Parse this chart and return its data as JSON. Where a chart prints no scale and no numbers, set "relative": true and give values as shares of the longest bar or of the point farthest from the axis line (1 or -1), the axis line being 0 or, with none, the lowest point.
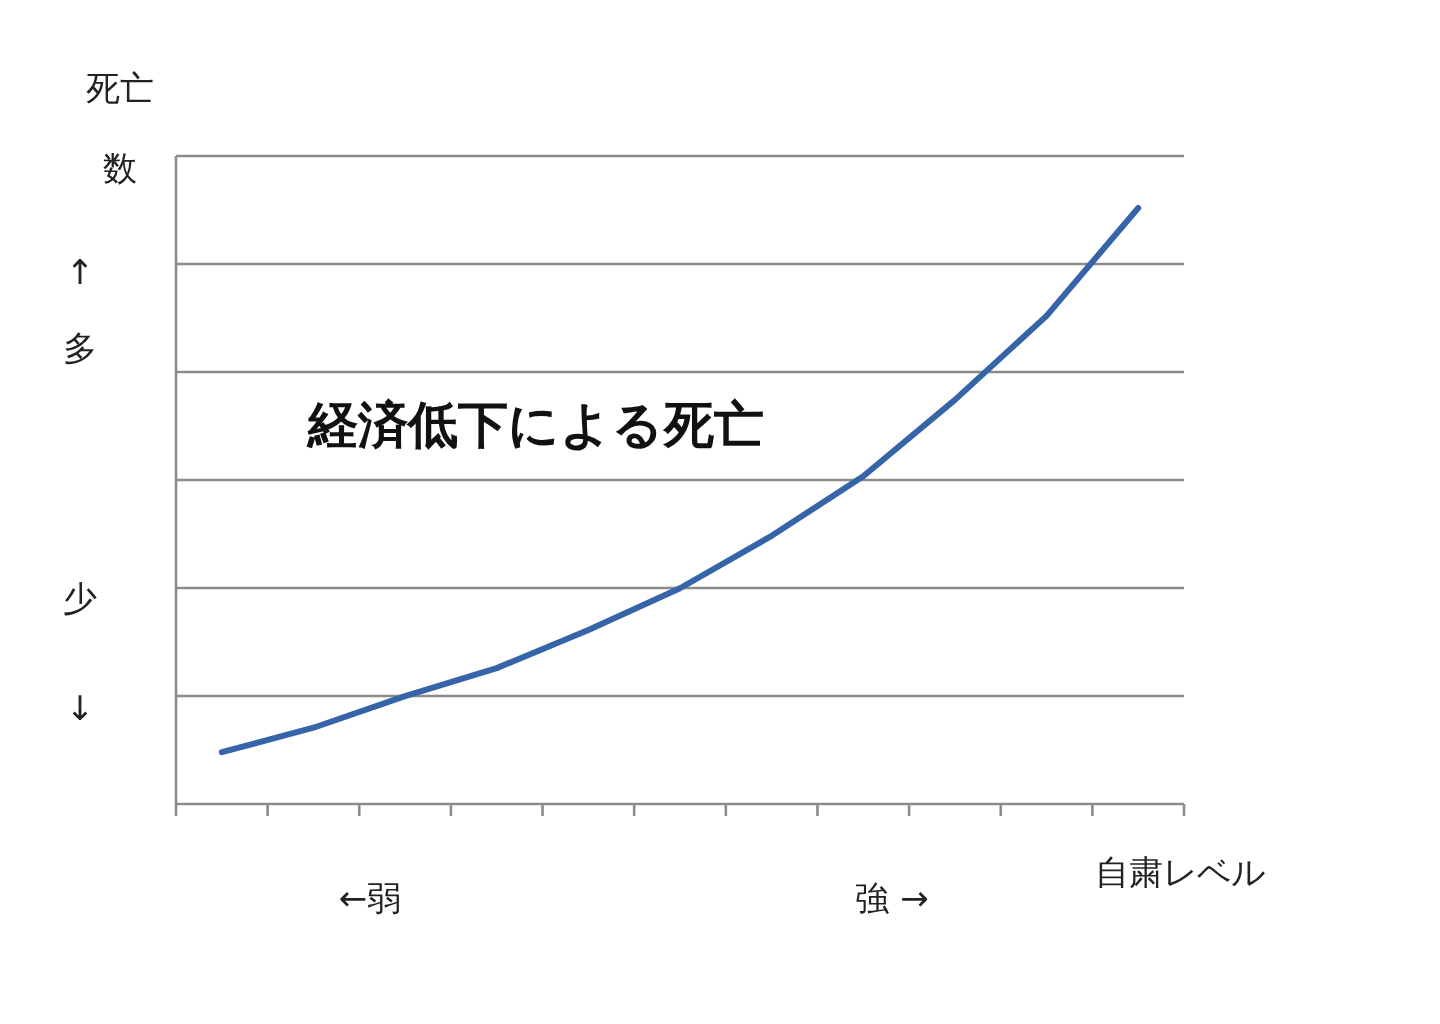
{
  "chart_data": {
    "type": "line",
    "relative": true,
    "xlabel": "自粛レベル",
    "ylabel": "死亡数",
    "annotations": [
      "↑",
      "多",
      "少",
      "↓",
      "←弱",
      "強 →",
      "経済低下による死亡"
    ],
    "categories": [
      null,
      null,
      null,
      null,
      null,
      null,
      null,
      null,
      null,
      null,
      null
    ],
    "series": [
      {
        "color": "#3564a8",
        "values": [
          0.087,
          0.128,
          0.181,
          0.228,
          0.292,
          0.362,
          0.45,
          0.55,
          0.678,
          0.819,
          1
        ]
      }
    ],
    "grid": "y",
    "marker": "none",
    "line_style": "solid"
  }
}
